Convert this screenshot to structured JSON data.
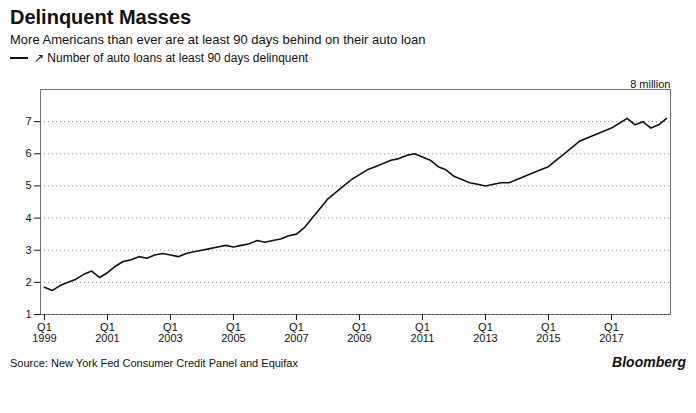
{
  "chart_data": {
    "type": "line",
    "title": "Delinquent Masses",
    "subtitle": "More Americans than ever are at least 90 days behind on their auto loan",
    "source": "Source: New York Fed Consumer Credit Panel and Equifax",
    "branding": "Bloomberg",
    "annotations": [
      {
        "text": "8 million"
      }
    ],
    "categories": [
      "Q1\n1999",
      null,
      null,
      null,
      null,
      null,
      null,
      null,
      "Q1\n2001",
      null,
      null,
      null,
      null,
      null,
      null,
      null,
      "Q1\n2003",
      null,
      null,
      null,
      null,
      null,
      null,
      null,
      "Q1\n2005",
      null,
      null,
      null,
      null,
      null,
      null,
      null,
      "Q1\n2007",
      null,
      null,
      null,
      null,
      null,
      null,
      null,
      "Q1\n2009",
      null,
      null,
      null,
      null,
      null,
      null,
      null,
      "Q1\n2011",
      null,
      null,
      null,
      null,
      null,
      null,
      null,
      "Q1\n2013",
      null,
      null,
      null,
      null,
      null,
      null,
      null,
      "Q1\n2015",
      null,
      null,
      null,
      null,
      null,
      null,
      null,
      "Q1\n2017",
      null,
      null,
      null,
      null,
      null,
      null,
      null
    ],
    "series": [
      {
        "name": "↗ Number of auto loans at least 90 days delinquent",
        "values": [
          1.85,
          1.75,
          1.9,
          2.0,
          2.1,
          2.25,
          2.35,
          2.15,
          2.3,
          2.5,
          2.65,
          2.7,
          2.8,
          2.75,
          2.85,
          2.9,
          2.85,
          2.8,
          2.9,
          2.95,
          3.0,
          3.05,
          3.1,
          3.15,
          3.1,
          3.15,
          3.2,
          3.3,
          3.25,
          3.3,
          3.35,
          3.45,
          3.5,
          3.7,
          4.0,
          4.3,
          4.6,
          4.8,
          5.0,
          5.2,
          5.35,
          5.5,
          5.6,
          5.7,
          5.8,
          5.85,
          5.95,
          6.0,
          5.9,
          5.8,
          5.6,
          5.5,
          5.3,
          5.2,
          5.1,
          5.05,
          5.0,
          5.05,
          5.1,
          5.1,
          5.2,
          5.3,
          5.4,
          5.5,
          5.6,
          5.8,
          6.0,
          6.2,
          6.4,
          6.5,
          6.6,
          6.7,
          6.8,
          6.95,
          7.1,
          6.9,
          7.0,
          6.8,
          6.9,
          7.1
        ]
      }
    ],
    "ylim": [
      1,
      8
    ],
    "yticks": [
      1,
      2,
      3,
      4,
      5,
      6,
      7
    ],
    "grid": true
  }
}
